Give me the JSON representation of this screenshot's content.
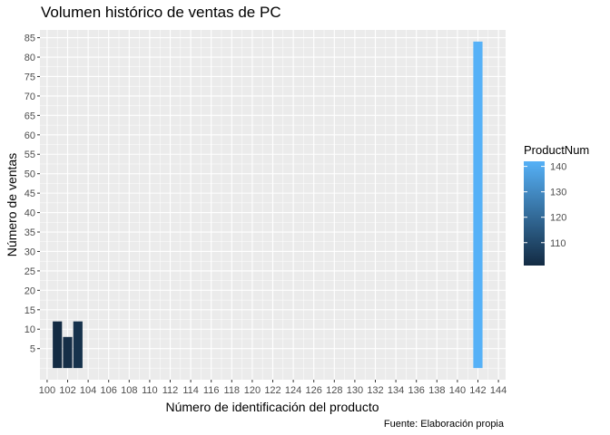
{
  "chart_data": {
    "type": "bar",
    "title": "Volumen histórico de ventas de PC",
    "xlabel": "Número de identificación del producto",
    "ylabel": "Número de ventas",
    "caption": "Fuente: Elaboración propia",
    "x_ticks": [
      100,
      102,
      104,
      106,
      108,
      110,
      112,
      114,
      116,
      118,
      120,
      122,
      124,
      126,
      128,
      130,
      132,
      134,
      136,
      138,
      140,
      142,
      144
    ],
    "y_ticks": [
      5,
      10,
      15,
      20,
      25,
      30,
      35,
      40,
      45,
      50,
      55,
      60,
      65,
      70,
      75,
      80,
      85
    ],
    "xlim": [
      99.3,
      144.7
    ],
    "ylim": [
      -3,
      87
    ],
    "grid": true,
    "bars": [
      {
        "x": 101,
        "value": 12
      },
      {
        "x": 102,
        "value": 8
      },
      {
        "x": 103,
        "value": 12
      },
      {
        "x": 142,
        "value": 84
      }
    ],
    "legend": {
      "title": "ProductNum",
      "placement": "right",
      "range": [
        101,
        142
      ],
      "ticks": [
        110,
        120,
        130,
        140
      ],
      "color_low": "#132B43",
      "color_high": "#56B1F7"
    }
  }
}
